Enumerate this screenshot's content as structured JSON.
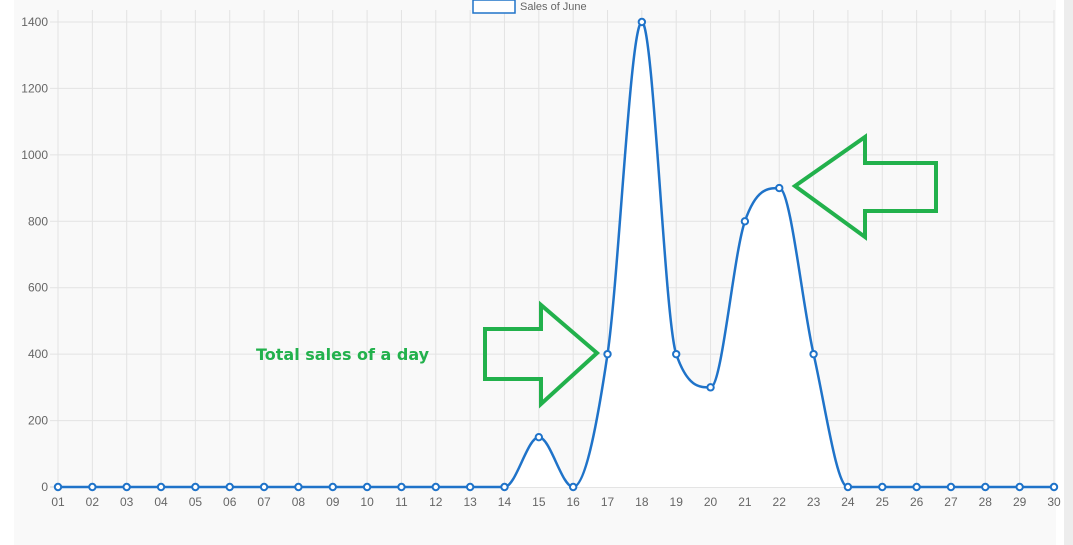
{
  "colors": {
    "line": "#1f73c9",
    "point_fill": "#ffffff",
    "grid": "#e3e3e3",
    "plot_bg": "#f9f9f9",
    "area_fill": "#ffffff",
    "tick_text": "#666666",
    "annotation": "#22b14c"
  },
  "annotation": {
    "text": "Total sales of a day",
    "arrow_icons": [
      "right-arrow-icon",
      "left-arrow-icon"
    ]
  },
  "chart_data": {
    "type": "line",
    "smooth": true,
    "filled_area": true,
    "grid": true,
    "legend_position": "top-center",
    "categories": [
      "01",
      "02",
      "03",
      "04",
      "05",
      "06",
      "07",
      "08",
      "09",
      "10",
      "11",
      "12",
      "13",
      "14",
      "15",
      "16",
      "17",
      "18",
      "19",
      "20",
      "21",
      "22",
      "23",
      "24",
      "25",
      "26",
      "27",
      "28",
      "29",
      "30"
    ],
    "series": [
      {
        "name": "Sales of June",
        "values": [
          0,
          0,
          0,
          0,
          0,
          0,
          0,
          0,
          0,
          0,
          0,
          0,
          0,
          0,
          150,
          0,
          400,
          1400,
          400,
          300,
          800,
          900,
          400,
          0,
          0,
          0,
          0,
          0,
          0,
          0
        ]
      }
    ],
    "yticks": [
      0,
      200,
      400,
      600,
      800,
      1000,
      1200,
      1400
    ],
    "ylim": [
      0,
      1400
    ],
    "title": "",
    "xlabel": "",
    "ylabel": ""
  }
}
